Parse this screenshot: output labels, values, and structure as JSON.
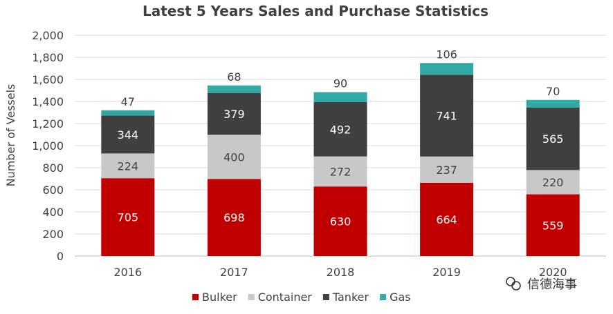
{
  "chart_data": {
    "type": "bar",
    "stacked": true,
    "title": "Latest 5 Years Sales and Purchase Statistics",
    "xlabel": "",
    "ylabel": "Number of Vessels",
    "categories": [
      "2016",
      "2017",
      "2018",
      "2019",
      "2020"
    ],
    "ylim": [
      0,
      2000
    ],
    "yticks": [
      0,
      200,
      400,
      600,
      800,
      1000,
      1200,
      1400,
      1600,
      1800,
      2000
    ],
    "ytick_labels": [
      "0",
      "200",
      "400",
      "600",
      "800",
      "1,000",
      "1,200",
      "1,400",
      "1,600",
      "1,800",
      "2,000"
    ],
    "grid": "horizontal",
    "legend_position": "bottom",
    "series": [
      {
        "name": "Bulker",
        "color": "#C00000",
        "label_color": "#ffffff",
        "values": [
          705,
          698,
          630,
          664,
          559
        ]
      },
      {
        "name": "Container",
        "color": "#C8C8C8",
        "label_color": "#404040",
        "values": [
          224,
          400,
          272,
          237,
          220
        ]
      },
      {
        "name": "Tanker",
        "color": "#404040",
        "label_color": "#ffffff",
        "values": [
          344,
          379,
          492,
          741,
          565
        ]
      },
      {
        "name": "Gas",
        "color": "#33A9A5",
        "label_color": "#404040",
        "label_outside": true,
        "values": [
          47,
          68,
          90,
          106,
          70
        ]
      }
    ]
  },
  "watermark": {
    "text": "信德海事",
    "icon": "wechat-icon"
  }
}
